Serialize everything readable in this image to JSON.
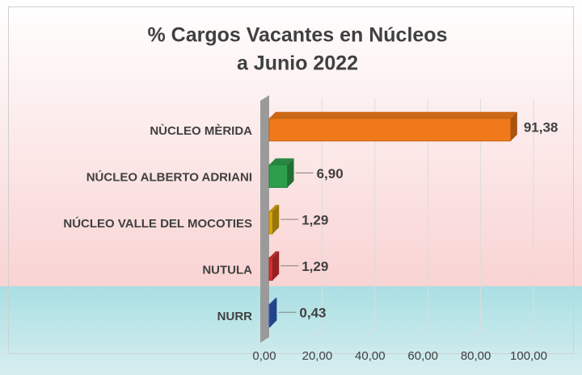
{
  "chart_data": {
    "type": "bar",
    "orientation": "horizontal",
    "title": [
      "% Cargos Vacantes en Núcleos",
      "a Junio 2022"
    ],
    "categories": [
      "NÙCLEO MÈRIDA",
      "NÚCLEO ALBERTO ADRIANI",
      "NÚCLEO VALLE DEL MOCOTIES",
      "NUTULA",
      "NURR"
    ],
    "values": [
      91.38,
      6.9,
      1.29,
      1.29,
      0.43
    ],
    "value_labels": [
      "91,38",
      "6,90",
      "1,29",
      "1,29",
      "0,43"
    ],
    "colors": [
      "#f07a1a",
      "#2e9e4a",
      "#d9a80f",
      "#d63030",
      "#2f5fc4"
    ],
    "xlim": [
      0,
      100
    ],
    "xticks": [
      {
        "value": 0,
        "label": "0,00"
      },
      {
        "value": 20,
        "label": "20,00"
      },
      {
        "value": 40,
        "label": "40,00"
      },
      {
        "value": 60,
        "label": "60,00"
      },
      {
        "value": 80,
        "label": "80,00"
      },
      {
        "value": 100,
        "label": "100,00"
      }
    ],
    "grid": true
  }
}
